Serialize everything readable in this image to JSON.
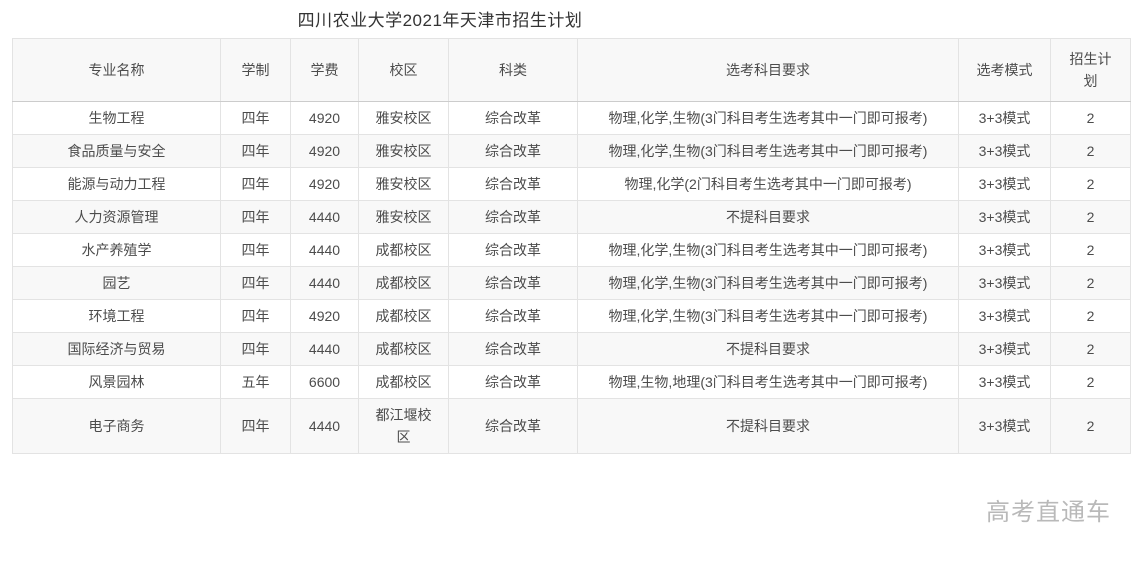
{
  "page": {
    "title": "四川农业大学2021年天津市招生计划",
    "watermark": "高考直通车"
  },
  "colors": {
    "header_background": "#f8f8f8",
    "row_alt_background": "#f8f8f8",
    "border": "#e3e3e3",
    "header_border_bottom": "#cccccc",
    "text": "#4c4c4c",
    "title_text": "#333333",
    "watermark_text": "#8f8f8f"
  },
  "table": {
    "columns": [
      {
        "key": "major",
        "label": "专业名称"
      },
      {
        "key": "duration",
        "label": "学制"
      },
      {
        "key": "tuition",
        "label": "学费"
      },
      {
        "key": "campus",
        "label": "校区"
      },
      {
        "key": "category",
        "label": "科类"
      },
      {
        "key": "subjects",
        "label": "选考科目要求"
      },
      {
        "key": "mode",
        "label": "选考模式"
      },
      {
        "key": "plan",
        "label": "招生计划"
      }
    ],
    "rows": [
      [
        "生物工程",
        "四年",
        "4920",
        "雅安校区",
        "综合改革",
        "物理,化学,生物(3门科目考生选考其中一门即可报考)",
        "3+3模式",
        "2"
      ],
      [
        "食品质量与安全",
        "四年",
        "4920",
        "雅安校区",
        "综合改革",
        "物理,化学,生物(3门科目考生选考其中一门即可报考)",
        "3+3模式",
        "2"
      ],
      [
        "能源与动力工程",
        "四年",
        "4920",
        "雅安校区",
        "综合改革",
        "物理,化学(2门科目考生选考其中一门即可报考)",
        "3+3模式",
        "2"
      ],
      [
        "人力资源管理",
        "四年",
        "4440",
        "雅安校区",
        "综合改革",
        "不提科目要求",
        "3+3模式",
        "2"
      ],
      [
        "水产养殖学",
        "四年",
        "4440",
        "成都校区",
        "综合改革",
        "物理,化学,生物(3门科目考生选考其中一门即可报考)",
        "3+3模式",
        "2"
      ],
      [
        "园艺",
        "四年",
        "4440",
        "成都校区",
        "综合改革",
        "物理,化学,生物(3门科目考生选考其中一门即可报考)",
        "3+3模式",
        "2"
      ],
      [
        "环境工程",
        "四年",
        "4920",
        "成都校区",
        "综合改革",
        "物理,化学,生物(3门科目考生选考其中一门即可报考)",
        "3+3模式",
        "2"
      ],
      [
        "国际经济与贸易",
        "四年",
        "4440",
        "成都校区",
        "综合改革",
        "不提科目要求",
        "3+3模式",
        "2"
      ],
      [
        "风景园林",
        "五年",
        "6600",
        "成都校区",
        "综合改革",
        "物理,生物,地理(3门科目考生选考其中一门即可报考)",
        "3+3模式",
        "2"
      ],
      [
        "电子商务",
        "四年",
        "4440",
        "都江堰校区",
        "综合改革",
        "不提科目要求",
        "3+3模式",
        "2"
      ]
    ]
  }
}
